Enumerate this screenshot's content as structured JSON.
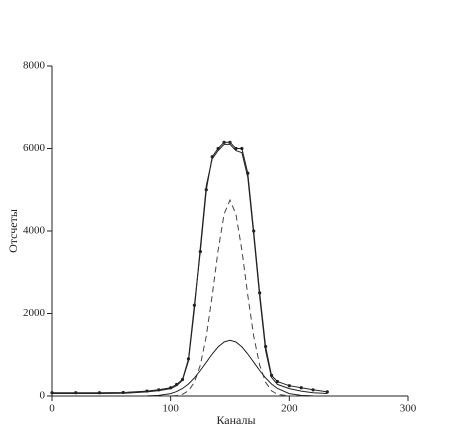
{
  "chart_data": {
    "type": "line",
    "xlabel": "Каналы",
    "ylabel": "Отсчеты",
    "x": [
      0,
      20,
      40,
      60,
      80,
      90,
      100,
      105,
      110,
      115,
      120,
      125,
      130,
      135,
      140,
      145,
      150,
      155,
      160,
      165,
      170,
      175,
      180,
      185,
      190,
      200,
      210,
      220,
      232
    ],
    "series": [
      {
        "color": "#222222",
        "markers": true,
        "dashed": false,
        "values": [
          80,
          80,
          80,
          85,
          120,
          150,
          200,
          280,
          400,
          900,
          2200,
          3500,
          5000,
          5800,
          6000,
          6150,
          6150,
          6000,
          6000,
          5400,
          4000,
          2500,
          1200,
          500,
          350,
          250,
          200,
          150,
          100
        ]
      },
      {
        "color": "#222222",
        "markers": false,
        "dashed": false,
        "values": [
          60,
          60,
          60,
          65,
          100,
          130,
          180,
          250,
          380,
          850,
          2100,
          3600,
          5100,
          5750,
          5950,
          6100,
          6100,
          5950,
          5900,
          5300,
          3900,
          2400,
          1100,
          450,
          280,
          180,
          120,
          80,
          60
        ]
      },
      {
        "color": "#444444",
        "markers": false,
        "dashed": true,
        "values": [
          0,
          0,
          0,
          0,
          0,
          0,
          3,
          12,
          42,
          127,
          332,
          747,
          1455,
          2441,
          3533,
          4411,
          4750,
          4411,
          3533,
          2441,
          1455,
          747,
          332,
          127,
          42,
          3,
          0,
          0,
          0
        ]
      },
      {
        "color": "#222222",
        "markers": false,
        "dashed": false,
        "values": [
          0,
          0,
          0,
          0,
          3,
          15,
          59,
          107,
          183,
          292,
          438,
          618,
          819,
          1019,
          1191,
          1308,
          1350,
          1308,
          1191,
          1019,
          819,
          618,
          438,
          292,
          183,
          59,
          15,
          3,
          0
        ]
      }
    ],
    "xlim": [
      0,
      300
    ],
    "xticks": [
      0,
      100,
      200,
      300
    ],
    "ylim": [
      0,
      8000
    ],
    "yticks": [
      0,
      2000,
      4000,
      6000,
      8000
    ]
  }
}
